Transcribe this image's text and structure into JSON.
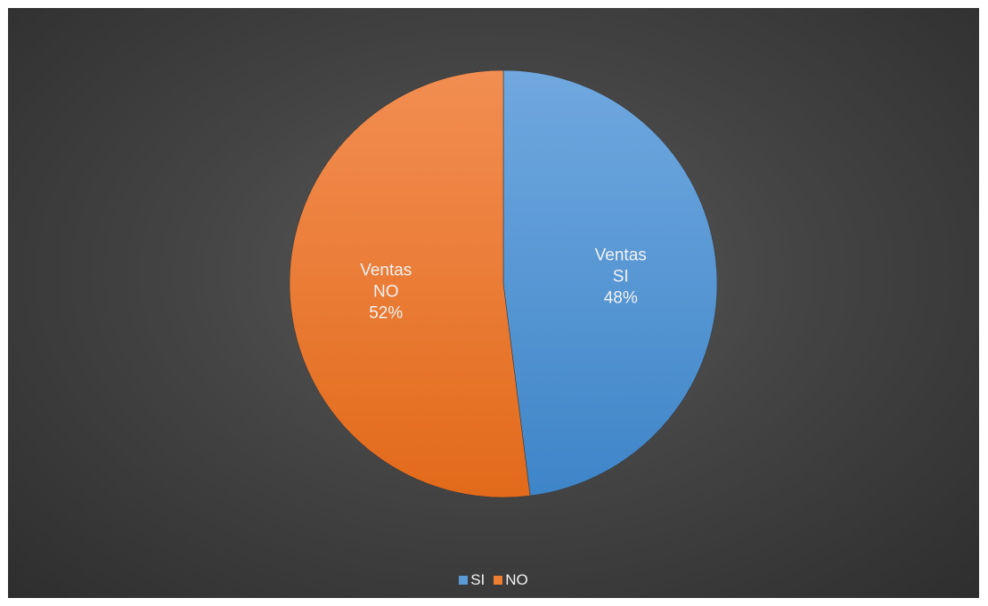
{
  "chart_data": {
    "type": "pie",
    "series_label": "Ventas",
    "categories": [
      "SI",
      "NO"
    ],
    "values": [
      48,
      52
    ],
    "units": "%",
    "colors": [
      "#5b9bd5",
      "#ed7d31"
    ],
    "legend_position": "bottom",
    "slices": [
      {
        "series": "Ventas",
        "category": "SI",
        "percent_label": "48%"
      },
      {
        "series": "Ventas",
        "category": "NO",
        "percent_label": "52%"
      }
    ],
    "legend": [
      {
        "label": "SI",
        "color": "#5b9bd5"
      },
      {
        "label": "NO",
        "color": "#ed7d31"
      }
    ]
  }
}
